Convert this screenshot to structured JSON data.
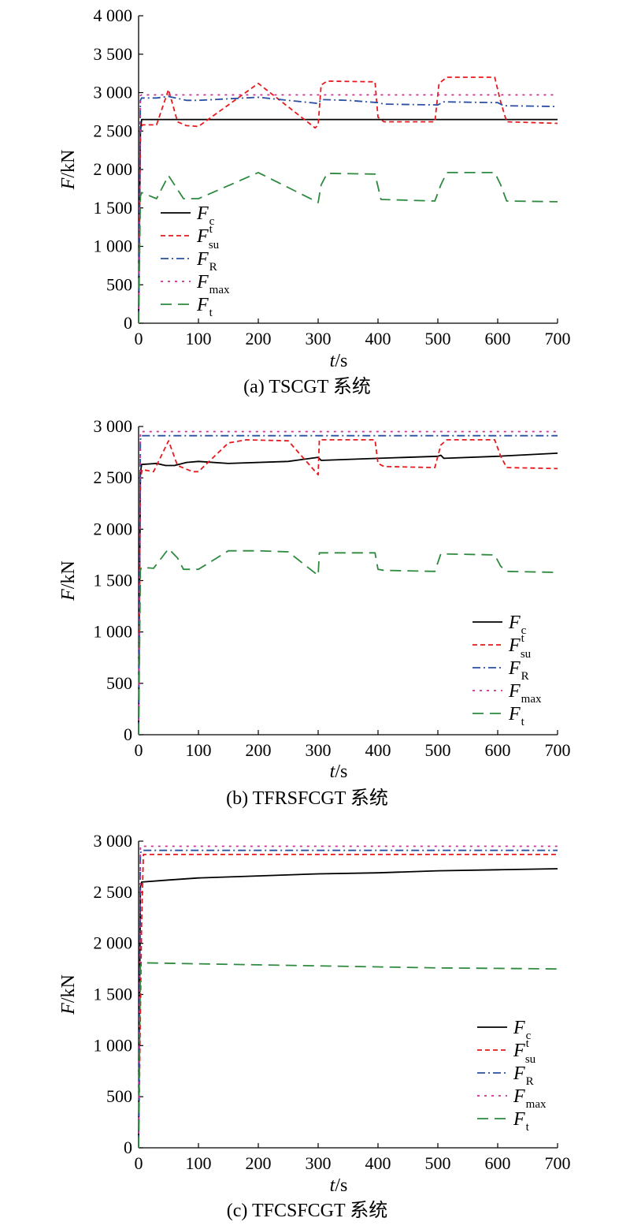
{
  "figure": {
    "legend_symbols": [
      {
        "main": "F",
        "sup": "",
        "sub": "c"
      },
      {
        "main": "F",
        "sup": "t",
        "sub": "su"
      },
      {
        "main": "F",
        "sup": "",
        "sub": "R"
      },
      {
        "main": "F",
        "sup": "",
        "sub": "max"
      },
      {
        "main": "F",
        "sup": "",
        "sub": "t"
      }
    ]
  },
  "chart_data": [
    {
      "type": "line",
      "caption": "(a) TSCGT 系统",
      "xlabel": "t/s",
      "ylabel": "F/kN",
      "xlim": [
        0,
        700
      ],
      "ylim": [
        0,
        4000
      ],
      "xticks": [
        "0",
        "100",
        "200",
        "300",
        "400",
        "500",
        "600",
        "700"
      ],
      "yticks": [
        "0",
        "500",
        "1 000",
        "1 500",
        "2 000",
        "2 500",
        "3 000",
        "3 500",
        "4 000"
      ],
      "legend_position": "left-middle",
      "series": [
        {
          "key": "Fc",
          "color": "#000000",
          "dash": "",
          "x": [
            0,
            3,
            5,
            700
          ],
          "y": [
            0,
            2500,
            2650,
            2650
          ]
        },
        {
          "key": "Fsu",
          "color": "#e8191c",
          "dash": "6,4",
          "x": [
            0,
            3,
            6,
            30,
            50,
            65,
            80,
            100,
            200,
            295,
            300,
            305,
            315,
            395,
            400,
            410,
            495,
            502,
            515,
            595,
            605,
            615,
            700
          ],
          "y": [
            0,
            2480,
            2580,
            2580,
            3040,
            2620,
            2570,
            2560,
            3120,
            2540,
            2580,
            3100,
            3150,
            3140,
            2680,
            2620,
            2620,
            3120,
            3200,
            3200,
            2880,
            2620,
            2600
          ]
        },
        {
          "key": "FR",
          "color": "#2b4fa2",
          "dash": "10,4,2,4",
          "x": [
            0,
            3,
            5,
            30,
            50,
            80,
            100,
            200,
            300,
            305,
            350,
            400,
            410,
            500,
            510,
            600,
            610,
            700
          ],
          "y": [
            0,
            2900,
            2930,
            2930,
            2950,
            2900,
            2900,
            2940,
            2860,
            2910,
            2900,
            2870,
            2850,
            2840,
            2880,
            2870,
            2830,
            2820
          ]
        },
        {
          "key": "Fmax",
          "color": "#cc2f8f",
          "dash": "3,6",
          "x": [
            0,
            3,
            5,
            700
          ],
          "y": [
            0,
            2960,
            2970,
            2970
          ]
        },
        {
          "key": "Ft",
          "color": "#2d8a3e",
          "dash": "14,8",
          "x": [
            0,
            3,
            5,
            30,
            50,
            75,
            100,
            200,
            300,
            305,
            315,
            395,
            405,
            495,
            505,
            515,
            595,
            605,
            615,
            700
          ],
          "y": [
            0,
            1650,
            1700,
            1620,
            1920,
            1620,
            1620,
            1960,
            1570,
            1800,
            1950,
            1940,
            1610,
            1590,
            1800,
            1960,
            1960,
            1800,
            1590,
            1580
          ]
        }
      ]
    },
    {
      "type": "line",
      "caption": "(b) TFRSFCGT 系统",
      "xlabel": "t/s",
      "ylabel": "F/kN",
      "xlim": [
        0,
        700
      ],
      "ylim": [
        0,
        3000
      ],
      "xticks": [
        "0",
        "100",
        "200",
        "300",
        "400",
        "500",
        "600",
        "700"
      ],
      "yticks": [
        "0",
        "500",
        "1 000",
        "1 500",
        "2 000",
        "2 500",
        "3 000"
      ],
      "legend_position": "bottom-right",
      "series": [
        {
          "key": "Fc",
          "color": "#000000",
          "dash": "",
          "x": [
            0,
            3,
            5,
            30,
            45,
            60,
            80,
            100,
            150,
            250,
            300,
            305,
            400,
            500,
            505,
            510,
            600,
            700
          ],
          "y": [
            0,
            2550,
            2630,
            2640,
            2620,
            2620,
            2650,
            2660,
            2640,
            2660,
            2700,
            2670,
            2690,
            2710,
            2720,
            2690,
            2710,
            2740
          ]
        },
        {
          "key": "Fsu",
          "color": "#e8191c",
          "dash": "6,4",
          "x": [
            0,
            3,
            6,
            25,
            50,
            65,
            90,
            100,
            150,
            180,
            250,
            300,
            302,
            395,
            400,
            410,
            495,
            505,
            515,
            595,
            605,
            615,
            700
          ],
          "y": [
            0,
            2500,
            2580,
            2560,
            2860,
            2620,
            2560,
            2560,
            2840,
            2870,
            2860,
            2530,
            2870,
            2870,
            2640,
            2610,
            2600,
            2820,
            2870,
            2870,
            2710,
            2600,
            2590
          ]
        },
        {
          "key": "FR",
          "color": "#2b4fa2",
          "dash": "10,4,2,4",
          "x": [
            0,
            3,
            5,
            700
          ],
          "y": [
            0,
            2870,
            2910,
            2910
          ]
        },
        {
          "key": "Fmax",
          "color": "#cc2f8f",
          "dash": "3,6",
          "x": [
            0,
            3,
            5,
            700
          ],
          "y": [
            0,
            2950,
            2950,
            2950
          ]
        },
        {
          "key": "Ft",
          "color": "#2d8a3e",
          "dash": "14,8",
          "x": [
            0,
            3,
            5,
            25,
            50,
            65,
            75,
            100,
            150,
            200,
            250,
            300,
            302,
            395,
            400,
            410,
            495,
            505,
            595,
            605,
            615,
            700
          ],
          "y": [
            0,
            1600,
            1630,
            1620,
            1810,
            1720,
            1610,
            1610,
            1790,
            1790,
            1780,
            1550,
            1770,
            1770,
            1610,
            1600,
            1590,
            1760,
            1750,
            1640,
            1590,
            1580
          ]
        }
      ]
    },
    {
      "type": "line",
      "caption": "(c) TFCSFCGT 系统",
      "xlabel": "t/s",
      "ylabel": "F/kN",
      "xlim": [
        0,
        700
      ],
      "ylim": [
        0,
        3000
      ],
      "xticks": [
        "0",
        "100",
        "200",
        "300",
        "400",
        "500",
        "600",
        "700"
      ],
      "yticks": [
        "0",
        "500",
        "1 000",
        "1 500",
        "2 000",
        "2 500",
        "3 000"
      ],
      "legend_position": "bottom-right",
      "series": [
        {
          "key": "Fc",
          "color": "#000000",
          "dash": "",
          "x": [
            0,
            3,
            5,
            50,
            100,
            200,
            300,
            400,
            500,
            600,
            700
          ],
          "y": [
            0,
            2550,
            2600,
            2620,
            2640,
            2660,
            2680,
            2690,
            2710,
            2720,
            2730
          ]
        },
        {
          "key": "Fsu",
          "color": "#e8191c",
          "dash": "6,4",
          "x": [
            0,
            5,
            8,
            700
          ],
          "y": [
            0,
            2200,
            2870,
            2870
          ]
        },
        {
          "key": "FR",
          "color": "#2b4fa2",
          "dash": "10,4,2,4",
          "x": [
            0,
            3,
            5,
            700
          ],
          "y": [
            0,
            2880,
            2910,
            2910
          ]
        },
        {
          "key": "Fmax",
          "color": "#cc2f8f",
          "dash": "3,6",
          "x": [
            0,
            3,
            5,
            700
          ],
          "y": [
            0,
            2950,
            2950,
            2950
          ]
        },
        {
          "key": "Ft",
          "color": "#2d8a3e",
          "dash": "14,8",
          "x": [
            0,
            3,
            5,
            100,
            200,
            300,
            400,
            500,
            600,
            700
          ],
          "y": [
            0,
            1780,
            1810,
            1800,
            1790,
            1780,
            1770,
            1760,
            1755,
            1750
          ]
        }
      ]
    }
  ]
}
